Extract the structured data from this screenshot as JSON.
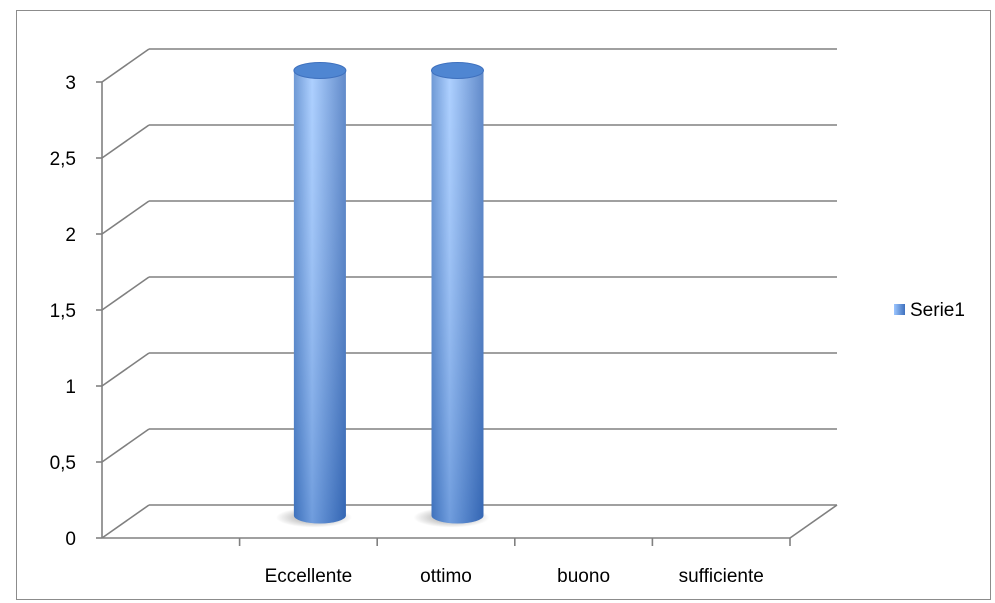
{
  "chart_data": {
    "type": "bar",
    "title": "",
    "xlabel": "",
    "ylabel": "",
    "categories": [
      "Eccellente",
      "ottimo",
      "buono",
      "sufficiente"
    ],
    "series": [
      {
        "name": "Serie1",
        "values": [
          3,
          3,
          0,
          0
        ],
        "color": "#5b8fd6"
      }
    ],
    "ylim": [
      0,
      3
    ],
    "yticks": [
      {
        "value": 0,
        "label": "0"
      },
      {
        "value": 0.5,
        "label": "0,5"
      },
      {
        "value": 1,
        "label": "1"
      },
      {
        "value": 1.5,
        "label": "1,5"
      },
      {
        "value": 2,
        "label": "2"
      },
      {
        "value": 2.5,
        "label": "2,5"
      },
      {
        "value": 3,
        "label": "3"
      }
    ],
    "grid": true,
    "legend": "right",
    "style": "3d-cylinder"
  }
}
